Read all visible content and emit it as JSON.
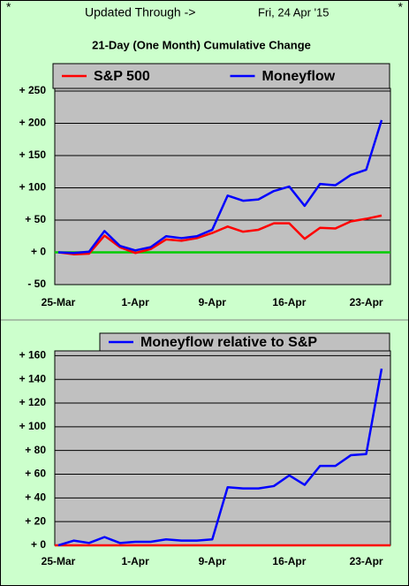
{
  "header": {
    "left_marker": "*",
    "right_marker": "*",
    "updated_label": "Updated Through ->",
    "date": "Fri, 24 Apr '15"
  },
  "chart_data": [
    {
      "type": "line",
      "title": "21-Day (One Month) Cumulative Change",
      "categories": [
        "25-Mar",
        null,
        null,
        null,
        null,
        "1-Apr",
        null,
        null,
        null,
        null,
        "9-Apr",
        null,
        null,
        null,
        null,
        "16-Apr",
        null,
        null,
        null,
        null,
        "23-Apr",
        null
      ],
      "series": [
        {
          "name": "S&P 500",
          "color": "#ff0000",
          "values": [
            0,
            -3,
            -2,
            26,
            8,
            -1,
            5,
            20,
            18,
            22,
            30,
            40,
            32,
            35,
            45,
            45,
            21,
            38,
            37,
            48,
            52,
            57
          ]
        },
        {
          "name": "Moneyflow",
          "color": "#0000ff",
          "values": [
            0,
            -1,
            1,
            33,
            10,
            3,
            8,
            25,
            22,
            25,
            35,
            88,
            80,
            82,
            95,
            102,
            72,
            106,
            104,
            120,
            128,
            205
          ]
        }
      ],
      "ylim": [
        -50,
        250
      ],
      "yticks": [
        {
          "value": 250,
          "label": "+ 250"
        },
        {
          "value": 200,
          "label": "+ 200"
        },
        {
          "value": 150,
          "label": "+ 150"
        },
        {
          "value": 100,
          "label": "+ 100"
        },
        {
          "value": 50,
          "label": "+ 50"
        },
        {
          "value": 0,
          "label": "+ 0"
        },
        {
          "value": -50,
          "label": "- 50"
        }
      ],
      "grid": true,
      "zero_line_color": "#00cc00",
      "plot_color": "#c0c0c0"
    },
    {
      "type": "line",
      "categories": [
        "25-Mar",
        null,
        null,
        null,
        null,
        "1-Apr",
        null,
        null,
        null,
        null,
        "9-Apr",
        null,
        null,
        null,
        null,
        "16-Apr",
        null,
        null,
        null,
        null,
        "23-Apr",
        null
      ],
      "series": [
        {
          "name": "Moneyflow relative to S&P",
          "color": "#0000ff",
          "values": [
            0,
            4,
            2,
            7,
            2,
            3,
            3,
            5,
            4,
            4,
            5,
            49,
            48,
            48,
            50,
            59,
            51,
            67,
            67,
            76,
            77,
            149
          ]
        }
      ],
      "ylim": [
        0,
        164
      ],
      "yticks": [
        {
          "value": 160,
          "label": "+ 160"
        },
        {
          "value": 140,
          "label": "+ 140"
        },
        {
          "value": 120,
          "label": "+ 120"
        },
        {
          "value": 100,
          "label": "+ 100"
        },
        {
          "value": 80,
          "label": "+ 80"
        },
        {
          "value": 60,
          "label": "+ 60"
        },
        {
          "value": 40,
          "label": "+ 40"
        },
        {
          "value": 20,
          "label": "+ 20"
        },
        {
          "value": 0,
          "label": "+ 0"
        }
      ],
      "grid": true,
      "zero_line_color": "#ff0000",
      "plot_color": "#c0c0c0"
    }
  ]
}
